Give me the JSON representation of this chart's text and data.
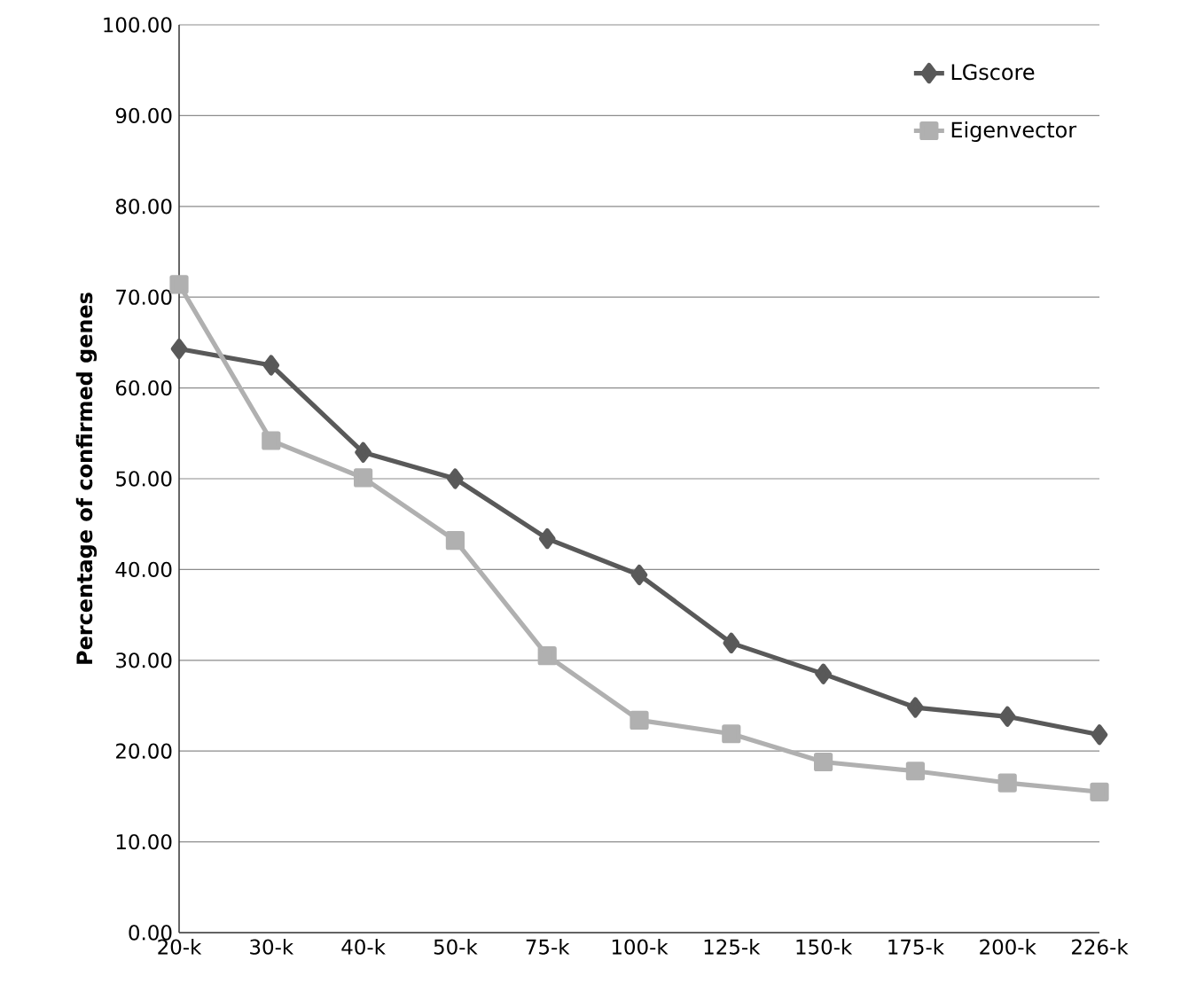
{
  "chart_data": {
    "type": "line",
    "ylabel": "Percentage of confirmed genes",
    "categories": [
      "20-k",
      "30-k",
      "40-k",
      "50-k",
      "75-k",
      "100-k",
      "125-k",
      "150-k",
      "175-k",
      "200-k",
      "226-k"
    ],
    "series": [
      {
        "name": "LGscore",
        "color": "#595959",
        "marker": "diamond",
        "values": [
          64.3,
          62.5,
          52.9,
          50.0,
          43.4,
          39.4,
          31.9,
          28.5,
          24.8,
          23.8,
          21.8
        ]
      },
      {
        "name": "Eigenvector",
        "color": "#b0b0b0",
        "marker": "square",
        "values": [
          71.4,
          54.2,
          50.1,
          43.2,
          30.5,
          23.4,
          21.9,
          18.8,
          17.8,
          16.5,
          15.5
        ]
      }
    ],
    "ylim": [
      0,
      100
    ],
    "yticks": [
      {
        "value": 0,
        "label": "0.00"
      },
      {
        "value": 10,
        "label": "10.00"
      },
      {
        "value": 20,
        "label": "20.00"
      },
      {
        "value": 30,
        "label": "30.00"
      },
      {
        "value": 40,
        "label": "40.00"
      },
      {
        "value": 50,
        "label": "50.00"
      },
      {
        "value": 60,
        "label": "60.00"
      },
      {
        "value": 70,
        "label": "70.00"
      },
      {
        "value": 80,
        "label": "80.00"
      },
      {
        "value": 90,
        "label": "90.00"
      },
      {
        "value": 100,
        "label": "100.00"
      }
    ],
    "grid": "y",
    "legend": "top right",
    "line_style": "solid"
  }
}
